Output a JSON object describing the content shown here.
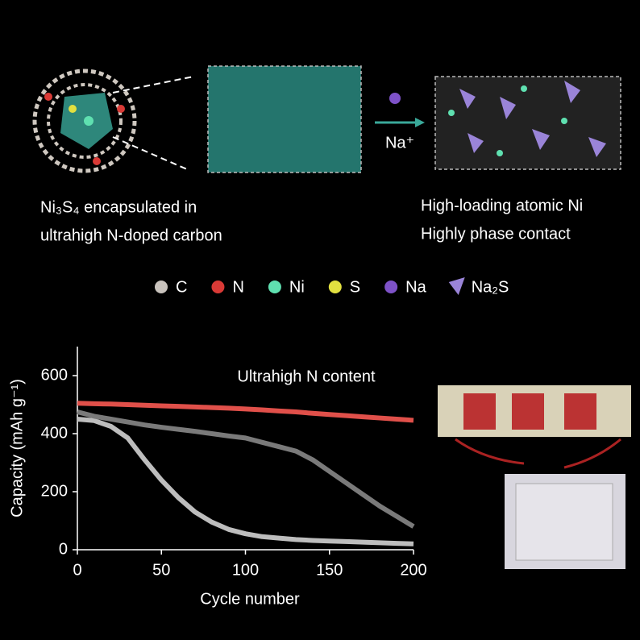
{
  "diagram": {
    "left_caption": [
      "Ni₃S₄ encapsulated in",
      "ultrahigh N-doped carbon"
    ],
    "arrow_label": "Na⁺",
    "right_caption": [
      "High-loading atomic Ni",
      "Highly phase contact"
    ],
    "legend": [
      {
        "label": "C",
        "color": "#c9c3bd"
      },
      {
        "label": "N",
        "color": "#d93a36"
      },
      {
        "label": "Ni",
        "color": "#5fe0b0"
      },
      {
        "label": "S",
        "color": "#e2e040"
      },
      {
        "label": "Na",
        "color": "#7e52c8"
      },
      {
        "label": "Na₂S",
        "color": "#9a84d8"
      }
    ]
  },
  "chart_data": {
    "type": "line",
    "annotation": "Ultrahigh N content",
    "x_label": "Cycle number",
    "y_label": "Capacity (mAh g⁻¹)",
    "x": [
      0,
      10,
      20,
      30,
      40,
      50,
      60,
      70,
      80,
      90,
      100,
      110,
      120,
      130,
      140,
      150,
      160,
      170,
      180,
      190,
      200
    ],
    "series": [
      {
        "color": "#e0504a",
        "values": [
          505,
          503,
          502,
          500,
          498,
          496,
          494,
          492,
          490,
          488,
          485,
          482,
          478,
          475,
          470,
          466,
          462,
          458,
          454,
          450,
          446
        ]
      },
      {
        "color": "#7a7a7a",
        "values": [
          475,
          460,
          450,
          440,
          430,
          422,
          415,
          408,
          400,
          392,
          385,
          370,
          355,
          340,
          310,
          270,
          230,
          190,
          150,
          115,
          80
        ]
      },
      {
        "color": "#bdbdbd",
        "values": [
          450,
          445,
          425,
          385,
          310,
          240,
          180,
          130,
          95,
          70,
          55,
          45,
          40,
          35,
          32,
          30,
          28,
          26,
          24,
          22,
          20
        ]
      }
    ],
    "xlim": [
      0,
      200
    ],
    "xticks": [
      0,
      50,
      100,
      150,
      200
    ],
    "ylim": [
      0,
      700
    ],
    "yticks": [
      0,
      200,
      400,
      600
    ]
  }
}
